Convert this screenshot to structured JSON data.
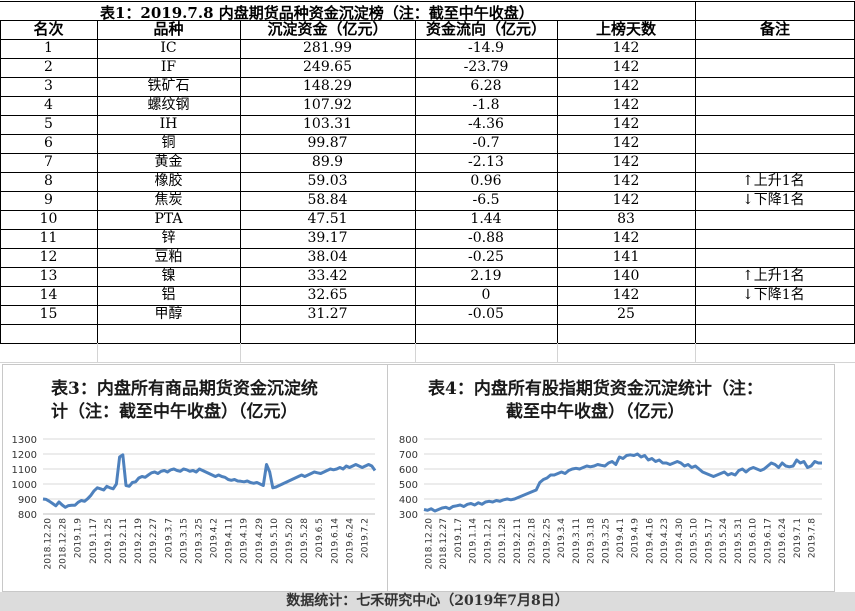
{
  "table": {
    "title": "表1：2019.7.8 内盘期货品种资金沉淀榜（注：截至中午收盘）",
    "headers": [
      "名次",
      "品种",
      "沉淀资金（亿元）",
      "资金流向（亿元）",
      "上榜天数",
      "备注"
    ],
    "rows": [
      [
        "1",
        "IC",
        "281.99",
        "-14.9",
        "142",
        ""
      ],
      [
        "2",
        "IF",
        "249.65",
        "-23.79",
        "142",
        ""
      ],
      [
        "3",
        "铁矿石",
        "148.29",
        "6.28",
        "142",
        ""
      ],
      [
        "4",
        "螺纹钢",
        "107.92",
        "-1.8",
        "142",
        ""
      ],
      [
        "5",
        "IH",
        "103.31",
        "-4.36",
        "142",
        ""
      ],
      [
        "6",
        "铜",
        "99.87",
        "-0.7",
        "142",
        ""
      ],
      [
        "7",
        "黄金",
        "89.9",
        "-2.13",
        "142",
        ""
      ],
      [
        "8",
        "橡胶",
        "59.03",
        "0.96",
        "142",
        "上升1名"
      ],
      [
        "9",
        "焦炭",
        "58.84",
        "-6.5",
        "142",
        "下降1名"
      ],
      [
        "10",
        "PTA",
        "47.51",
        "1.44",
        "83",
        ""
      ],
      [
        "11",
        "锌",
        "39.17",
        "-0.88",
        "142",
        ""
      ],
      [
        "12",
        "豆粕",
        "38.04",
        "-0.25",
        "141",
        ""
      ],
      [
        "13",
        "镍",
        "33.42",
        "2.19",
        "140",
        "上升1名"
      ],
      [
        "14",
        "铝",
        "32.65",
        "0",
        "142",
        "下降1名"
      ],
      [
        "15",
        "甲醇",
        "31.27",
        "-0.05",
        "25",
        ""
      ]
    ]
  },
  "chart_data": [
    {
      "type": "line",
      "title": "表3：内盘所有商品期货资金沉淀统计（注：截至中午收盘）（亿元）",
      "title_lines": [
        "表3：内盘所有商品期货资金沉淀统",
        "计（注：截至中午收盘）（亿元）"
      ],
      "color": "#4e81bd",
      "ylim": [
        800,
        1300
      ],
      "yticks": [
        800,
        900,
        1000,
        1100,
        1200,
        1300
      ],
      "x_tick_labels": [
        "2018.12.20",
        "2018.12.28",
        "2019.1.9",
        "2019.1.17",
        "2019.1.25",
        "2019.2.11",
        "2019.2.19",
        "2019.2.27",
        "2019.3.7",
        "2019.3.15",
        "2019.3.25",
        "2019.4.2",
        "2019.4.11",
        "2019.4.19",
        "2019.4.29",
        "2019.5.10",
        "2019.5.20",
        "2019.5.28",
        "2019.6.5",
        "2019.6.14",
        "2019.6.24",
        "2019.7.2"
      ],
      "series": [
        {
          "values": [
            900,
            897,
            885,
            870,
            855,
            880,
            860,
            845,
            856,
            858,
            858,
            878,
            890,
            885,
            902,
            925,
            955,
            975,
            968,
            960,
            985,
            975,
            968,
            1000,
            1180,
            1195,
            990,
            985,
            1010,
            1015,
            1040,
            1050,
            1045,
            1060,
            1075,
            1080,
            1070,
            1085,
            1090,
            1080,
            1095,
            1100,
            1090,
            1085,
            1100,
            1095,
            1085,
            1090,
            1080,
            1100,
            1090,
            1080,
            1070,
            1060,
            1050,
            1060,
            1050,
            1045,
            1030,
            1025,
            1030,
            1020,
            1018,
            1015,
            1020,
            1010,
            1005,
            1010,
            1000,
            990,
            1130,
            1080,
            975,
            980,
            990,
            1000,
            1010,
            1020,
            1030,
            1040,
            1050,
            1060,
            1050,
            1060,
            1070,
            1080,
            1075,
            1070,
            1080,
            1090,
            1100,
            1095,
            1100,
            1110,
            1100,
            1120,
            1110,
            1120,
            1130,
            1120,
            1110,
            1120,
            1130,
            1120,
            1090
          ]
        }
      ]
    },
    {
      "type": "line",
      "title": "表4：内盘所有股指期货资金沉淀统计（注：截至中午收盘）（亿元）",
      "title_lines": [
        "表4：内盘所有股指期货资金沉淀统计（注：",
        "截至中午收盘）（亿元）"
      ],
      "color": "#4e81bd",
      "ylim": [
        300,
        800
      ],
      "yticks": [
        300,
        400,
        500,
        600,
        700,
        800
      ],
      "x_tick_labels": [
        "2018.12.20",
        "2018.12.27",
        "2019.1.7",
        "2019.1.14",
        "2019.1.21",
        "2019.1.28",
        "2019.2.11",
        "2019.2.18",
        "2019.2.25",
        "2019.3.4",
        "2019.3.11",
        "2019.3.18",
        "2019.3.25",
        "2019.4.1",
        "2019.4.9",
        "2019.4.16",
        "2019.4.23",
        "2019.4.30",
        "2019.5.10",
        "2019.5.17",
        "2019.5.24",
        "2019.5.31",
        "2019.6.10",
        "2019.6.17",
        "2019.6.24",
        "2019.7.1",
        "2019.7.8"
      ],
      "series": [
        {
          "values": [
            330,
            325,
            335,
            320,
            330,
            340,
            345,
            335,
            350,
            355,
            360,
            350,
            365,
            370,
            360,
            375,
            365,
            380,
            385,
            380,
            390,
            385,
            395,
            400,
            395,
            400,
            410,
            420,
            430,
            440,
            450,
            460,
            510,
            530,
            540,
            560,
            560,
            570,
            580,
            570,
            590,
            600,
            605,
            600,
            610,
            620,
            615,
            620,
            630,
            625,
            620,
            640,
            650,
            630,
            680,
            670,
            690,
            695,
            690,
            700,
            680,
            690,
            660,
            670,
            650,
            660,
            640,
            640,
            630,
            640,
            650,
            640,
            620,
            630,
            610,
            620,
            600,
            580,
            570,
            560,
            550,
            560,
            570,
            580,
            560,
            570,
            560,
            590,
            600,
            580,
            600,
            610,
            600,
            590,
            600,
            620,
            640,
            630,
            610,
            640,
            620,
            615,
            620,
            660,
            640,
            650,
            610,
            620,
            650,
            640,
            640
          ]
        }
      ]
    }
  ],
  "footer": "数据统计：七禾研究中心（2019年7月8日）"
}
